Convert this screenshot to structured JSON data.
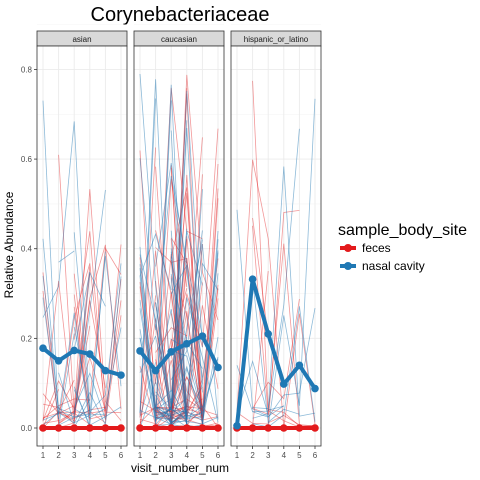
{
  "chart_data": {
    "type": "line",
    "title": "Corynebacteriaceae",
    "xlabel": "visit_number_num",
    "ylabel": "Relative Abundance",
    "x": [
      1,
      2,
      3,
      4,
      5,
      6
    ],
    "ylim": [
      0,
      0.83
    ],
    "yticks": [
      "0.0",
      "0.2",
      "0.4",
      "0.6",
      "0.8"
    ],
    "grid": true,
    "facets": [
      "asian",
      "caucasian",
      "hispanic_or_latino"
    ],
    "legend": {
      "title": "sample_body_site",
      "position": "right",
      "entries": [
        "feces",
        "nasal cavity"
      ]
    },
    "colors": {
      "feces": "#e31a1c",
      "nasal cavity": "#1f78b4"
    },
    "series": [
      {
        "name": "feces",
        "facet": "asian",
        "values": [
          0,
          0,
          0,
          0,
          0,
          0
        ]
      },
      {
        "name": "nasal cavity",
        "facet": "asian",
        "values": [
          0.178,
          0.15,
          0.173,
          0.165,
          0.128,
          0.118
        ]
      },
      {
        "name": "feces",
        "facet": "caucasian",
        "values": [
          0,
          0,
          0,
          0,
          0,
          0
        ]
      },
      {
        "name": "nasal cavity",
        "facet": "caucasian",
        "values": [
          0.172,
          0.128,
          0.17,
          0.188,
          0.205,
          0.135
        ]
      },
      {
        "name": "feces",
        "facet": "hispanic_or_latino",
        "values": [
          0,
          0,
          0,
          0,
          0,
          0
        ]
      },
      {
        "name": "nasal cavity",
        "facet": "hispanic_or_latino",
        "values": [
          0.005,
          0.332,
          0.21,
          0.098,
          0.14,
          0.088
        ]
      }
    ]
  }
}
